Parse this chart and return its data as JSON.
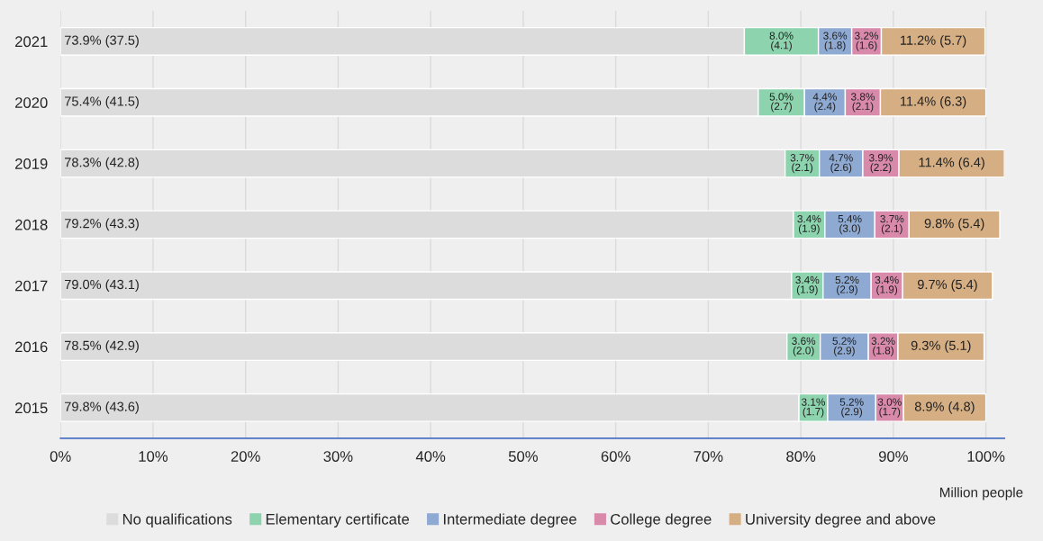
{
  "chart_data": {
    "type": "bar",
    "orientation": "horizontal",
    "stacked": true,
    "xlabel": "Million people",
    "categories": [
      "2021",
      "2020",
      "2019",
      "2018",
      "2017",
      "2016",
      "2015"
    ],
    "series": [
      {
        "name": "No qualifications",
        "color": "#dcdcdc",
        "values": [
          73.9,
          75.4,
          78.3,
          79.2,
          79.0,
          78.5,
          79.8
        ],
        "value_labels": [
          "73.9% (37.5)",
          "75.4% (41.5)",
          "78.3% (42.8)",
          "79.2% (43.3)",
          "79.0% (43.1)",
          "78.5% (42.9)",
          "79.8% (43.6)"
        ]
      },
      {
        "name": "Elementary certificate",
        "color": "#8dd3ae",
        "values": [
          8.0,
          5.0,
          3.7,
          3.4,
          3.4,
          3.6,
          3.1
        ],
        "value_labels": [
          "8.0%\n(4.1)",
          "5.0%\n(2.7)",
          "3.7%\n(2.1)",
          "3.4%\n(1.9)",
          "3.4%\n(1.9)",
          "3.6%\n(2.0)",
          "3.1%\n(1.7)"
        ]
      },
      {
        "name": "Intermediate degree",
        "color": "#8eaad3",
        "values": [
          3.6,
          4.4,
          4.7,
          5.4,
          5.2,
          5.2,
          5.2
        ],
        "value_labels": [
          "3.6%\n(1.8)",
          "4.4%\n(2.4)",
          "4.7%\n(2.6)",
          "5.4%\n(3.0)",
          "5.2%\n(2.9)",
          "5.2%\n(2.9)",
          "5.2%\n(2.9)"
        ]
      },
      {
        "name": "College degree",
        "color": "#d98aab",
        "values": [
          3.2,
          3.8,
          3.9,
          3.7,
          3.4,
          3.2,
          3.0
        ],
        "value_labels": [
          "3.2%\n(1.6)",
          "3.8%\n(2.1)",
          "3.9%\n(2.2)",
          "3.7%\n(2.1)",
          "3.4%\n(1.9)",
          "3.2%\n(1.8)",
          "3.0%\n(1.7)"
        ]
      },
      {
        "name": "University degree and above",
        "color": "#d5ae83",
        "values": [
          11.2,
          11.4,
          11.4,
          9.8,
          9.7,
          9.3,
          8.9
        ],
        "value_labels": [
          "11.2% (5.7)",
          "11.4% (6.3)",
          "11.4% (6.4)",
          "9.8% (5.4)",
          "9.7% (5.4)",
          "9.3% (5.1)",
          "8.9% (4.8)"
        ]
      }
    ],
    "xlim": [
      0,
      102
    ],
    "xticks": [
      {
        "value": 0,
        "label": "0%"
      },
      {
        "value": 10,
        "label": "10%"
      },
      {
        "value": 20,
        "label": "20%"
      },
      {
        "value": 30,
        "label": "30%"
      },
      {
        "value": 40,
        "label": "40%"
      },
      {
        "value": 50,
        "label": "50%"
      },
      {
        "value": 60,
        "label": "60%"
      },
      {
        "value": 70,
        "label": "70%"
      },
      {
        "value": 80,
        "label": "80%"
      },
      {
        "value": 90,
        "label": "90%"
      },
      {
        "value": 100,
        "label": "100%"
      }
    ],
    "grid": "x",
    "legend": "bottom"
  }
}
